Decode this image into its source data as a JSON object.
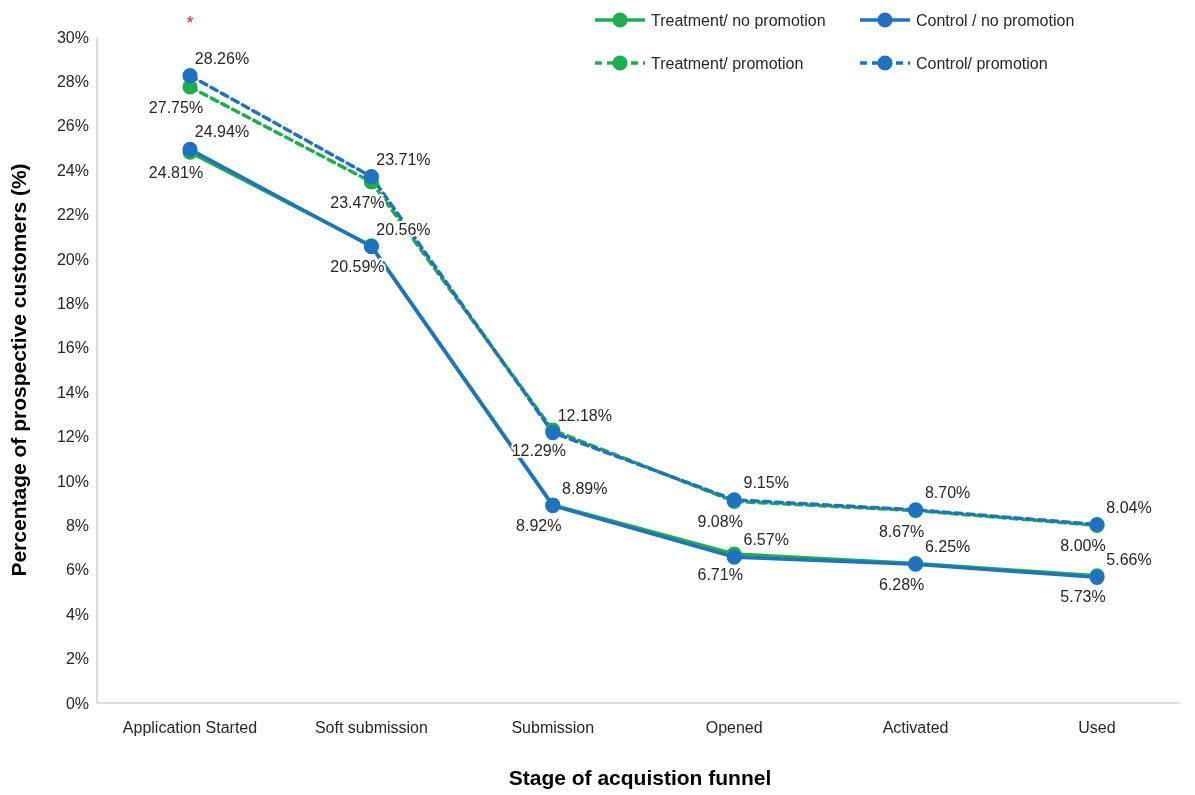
{
  "chart_data": {
    "type": "line",
    "xlabel": "Stage of acquistion funnel",
    "ylabel": "Percentage of prospective customers (%)",
    "categories": [
      "Application Started",
      "Soft submission",
      "Submission",
      "Opened",
      "Activated",
      "Used"
    ],
    "series": [
      {
        "name": "Treatment/ no promotion",
        "color": "#1fae4c",
        "line_style": "solid",
        "values": [
          24.81,
          20.59,
          8.92,
          6.71,
          6.28,
          5.73
        ],
        "value_labels": [
          "24.81%",
          "20.59%",
          "8.92%",
          "6.71%",
          "6.28%",
          "5.73%"
        ]
      },
      {
        "name": "Control / no promotion",
        "color": "#1f72c0",
        "line_style": "solid",
        "values": [
          24.94,
          20.56,
          8.89,
          6.57,
          6.25,
          5.66
        ],
        "value_labels": [
          "24.94%",
          "20.56%",
          "8.89%",
          "6.57%",
          "6.25%",
          "5.66%"
        ]
      },
      {
        "name": "Treatment/ promotion",
        "color": "#1fae4c",
        "line_style": "dashed",
        "values": [
          27.75,
          23.47,
          12.29,
          9.08,
          8.67,
          8.0
        ],
        "value_labels": [
          "27.75%",
          "23.47%",
          "12.29%",
          "9.08%",
          "8.67%",
          "8.00%"
        ]
      },
      {
        "name": "Control/ promotion",
        "color": "#1f72c0",
        "line_style": "dashed",
        "values": [
          28.26,
          23.71,
          12.18,
          9.15,
          8.7,
          8.04
        ],
        "value_labels": [
          "28.26%",
          "23.71%",
          "12.18%",
          "9.15%",
          "8.70%",
          "8.04%"
        ]
      }
    ],
    "ylim": [
      0,
      30
    ],
    "yticks": [
      {
        "value": 0,
        "label": "0%"
      },
      {
        "value": 2,
        "label": "2%"
      },
      {
        "value": 4,
        "label": "4%"
      },
      {
        "value": 6,
        "label": "6%"
      },
      {
        "value": 8,
        "label": "8%"
      },
      {
        "value": 10,
        "label": "10%"
      },
      {
        "value": 12,
        "label": "12%"
      },
      {
        "value": 14,
        "label": "14%"
      },
      {
        "value": 16,
        "label": "16%"
      },
      {
        "value": 18,
        "label": "18%"
      },
      {
        "value": 20,
        "label": "20%"
      },
      {
        "value": 22,
        "label": "22%"
      },
      {
        "value": 24,
        "label": "24%"
      },
      {
        "value": 26,
        "label": "26%"
      },
      {
        "value": 28,
        "label": "28%"
      },
      {
        "value": 30,
        "label": "30%"
      }
    ],
    "annotations": [
      "*"
    ],
    "marker": "circle",
    "legend": "top right",
    "grid": false
  }
}
